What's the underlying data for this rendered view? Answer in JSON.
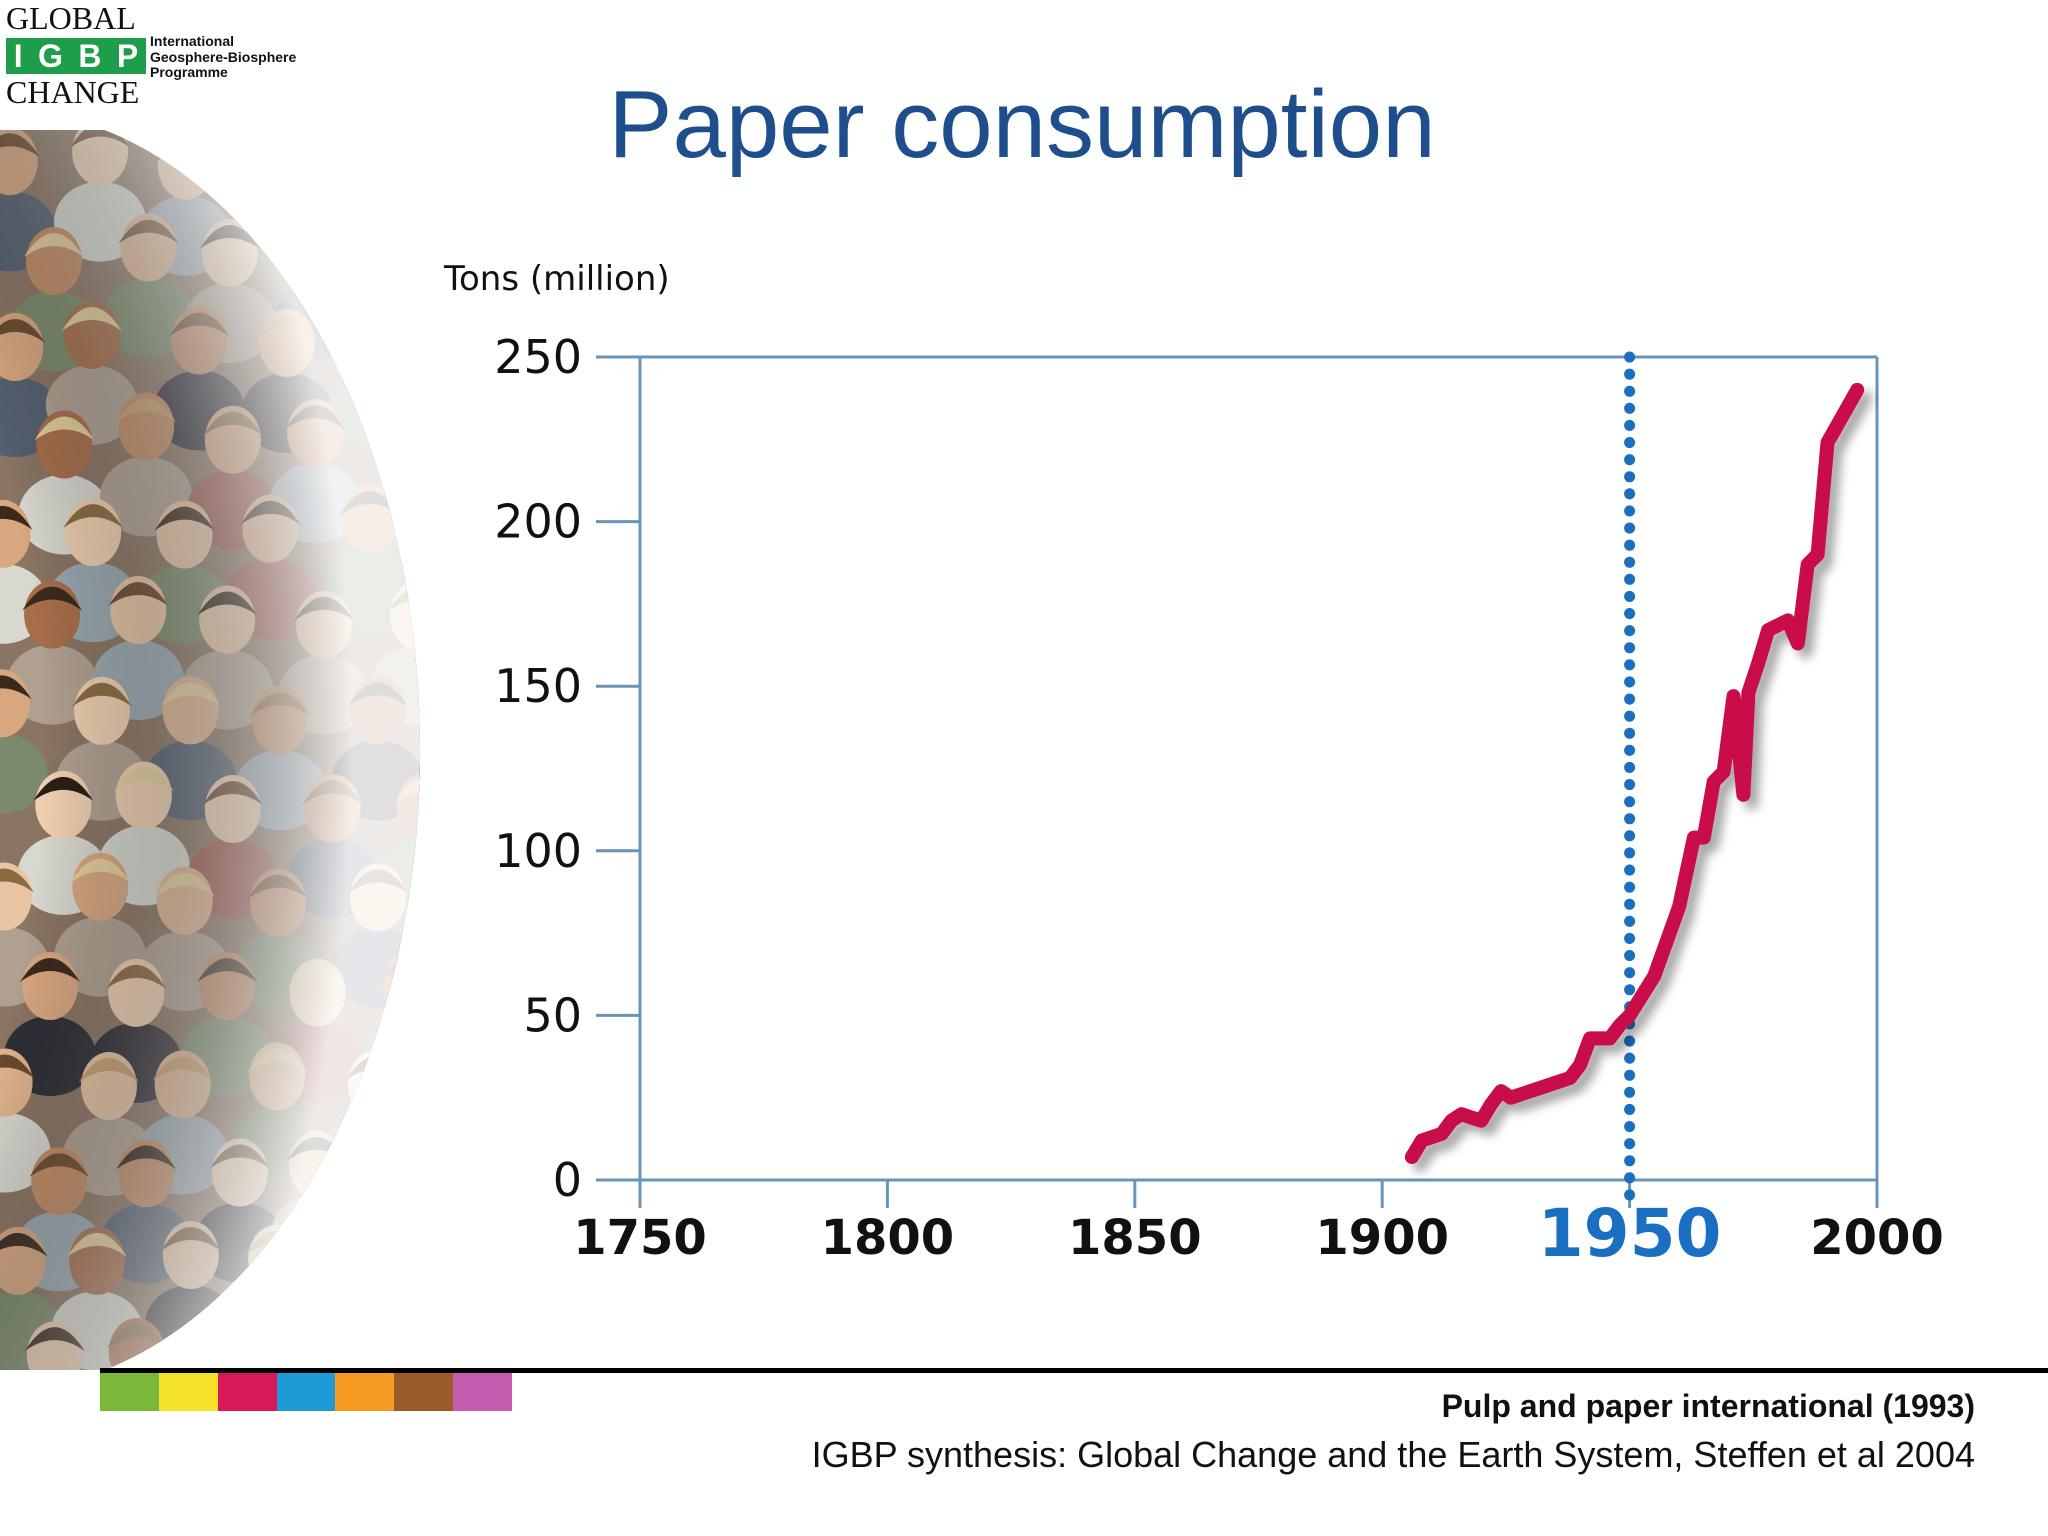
{
  "logo": {
    "word_top": "GLOBAL",
    "letters": [
      "I",
      "G",
      "B",
      "P"
    ],
    "word_bottom": "CHANGE",
    "sub_lines": [
      "International",
      "Geosphere-Biosphere",
      "Programme"
    ],
    "brand_color": "#1e9e4a"
  },
  "title": "Paper consumption",
  "chart_data": {
    "type": "line",
    "title": "",
    "ylabel": "Tons (million)",
    "xlabel": "",
    "xlim": [
      1750,
      2000
    ],
    "ylim": [
      0,
      250
    ],
    "x_ticks": [
      "1750",
      "1800",
      "1850",
      "1900",
      "1950",
      "2000"
    ],
    "y_ticks": [
      "0",
      "50",
      "100",
      "150",
      "200",
      "250"
    ],
    "highlight_year": 1950,
    "highlight_label": "1950",
    "grid": false,
    "series": [
      {
        "color": "#c8074a",
        "points": [
          [
            1906,
            7
          ],
          [
            1908,
            12
          ],
          [
            1912,
            14
          ],
          [
            1914,
            18
          ],
          [
            1916,
            20
          ],
          [
            1918,
            19
          ],
          [
            1920,
            18
          ],
          [
            1922,
            23
          ],
          [
            1924,
            27
          ],
          [
            1926,
            25
          ],
          [
            1928,
            26
          ],
          [
            1932,
            28
          ],
          [
            1936,
            30
          ],
          [
            1938,
            31
          ],
          [
            1940,
            35
          ],
          [
            1942,
            43
          ],
          [
            1946,
            43
          ],
          [
            1948,
            47
          ],
          [
            1950,
            50
          ],
          [
            1955,
            62
          ],
          [
            1960,
            83
          ],
          [
            1963,
            104
          ],
          [
            1965,
            104
          ],
          [
            1967,
            121
          ],
          [
            1969,
            124
          ],
          [
            1971,
            147
          ],
          [
            1973,
            117
          ],
          [
            1974,
            148
          ],
          [
            1976,
            157
          ],
          [
            1978,
            167
          ],
          [
            1982,
            170
          ],
          [
            1984,
            163
          ],
          [
            1986,
            187
          ],
          [
            1988,
            190
          ],
          [
            1990,
            224
          ],
          [
            1996,
            240
          ]
        ]
      }
    ],
    "colors": {
      "axis": "#6b93b8",
      "highlight_line": "#1a6fc0",
      "tick_text": "#111111"
    }
  },
  "footer": {
    "source_primary": "Pulp and paper international (1993)",
    "source_secondary": "IGBP synthesis: Global Change and the Earth System, Steffen et al 2004",
    "strip_colors": [
      "#7ab83a",
      "#f5e22b",
      "#d9185a",
      "#1d9bd6",
      "#f79a24",
      "#9a5a2a",
      "#c45cb0"
    ]
  }
}
